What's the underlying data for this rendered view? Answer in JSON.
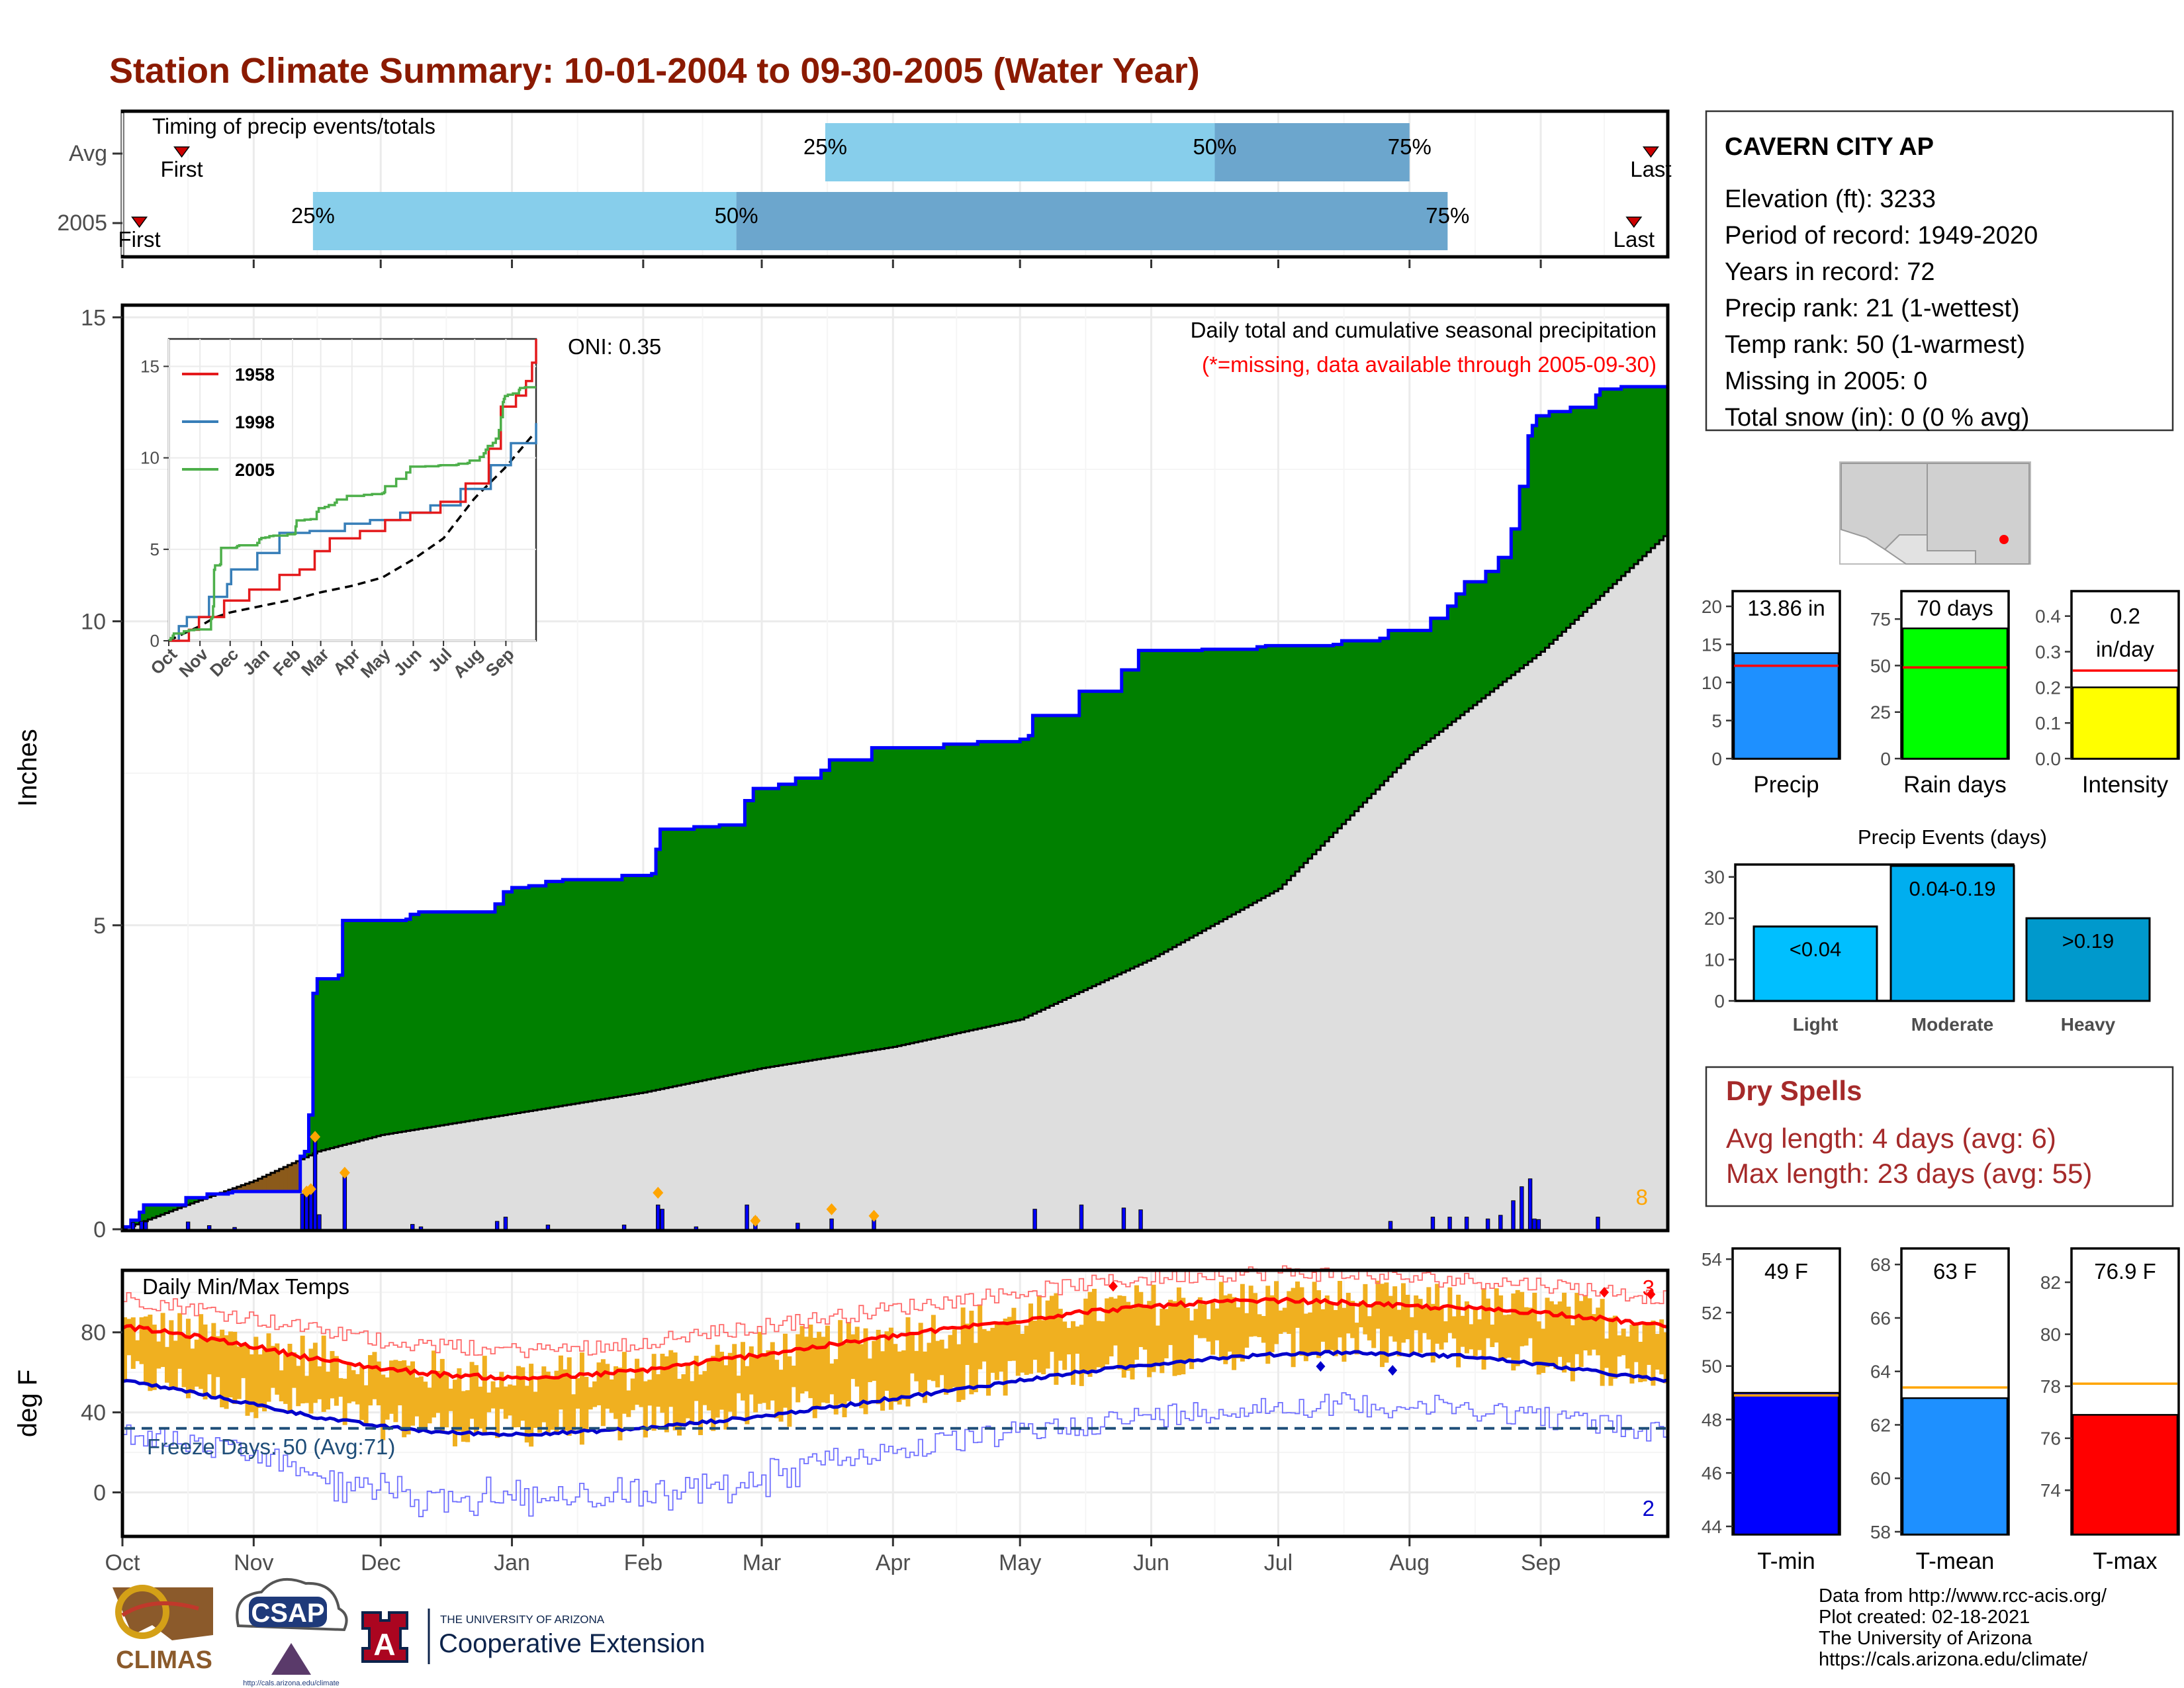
{
  "page_title": "Station Climate Summary: 10-01-2004 to 09-30-2005 (Water Year)",
  "colors": {
    "title": "#8B1A00",
    "timing_light": "#87CEEB",
    "timing_dark": "#6CA6CD",
    "cumulative_fill": "#008000",
    "cumulative_line": "#0000FF",
    "deficit_fill": "#8B5A1A",
    "climatology_fill": "#DEDEDE",
    "daily_bar": "#0000FF",
    "temp_range": "#F0B020",
    "tmax_line": "#FF0000",
    "tmin_line": "#0000CC",
    "freeze_line": "#1F4E79",
    "dry_spell_text": "#A52A2A"
  },
  "timing": {
    "title": "Timing of precip events/totals",
    "rows": [
      {
        "label": "Avg",
        "first_label": "First",
        "last_label": "Last",
        "first_date": "2004-10-15",
        "last_date": "2005-09-27",
        "p25_date": "2005-03-16",
        "p50_date": "2005-06-16",
        "p75_date": "2005-08-01",
        "p25_label": "25%",
        "p50_label": "50%",
        "p75_label": "75%"
      },
      {
        "label": "2005",
        "first_label": "First",
        "last_label": "Last",
        "first_date": "2004-10-05",
        "last_date": "2005-09-23",
        "p25_date": "2004-11-15",
        "p50_date": "2005-02-23",
        "p75_date": "2005-08-10",
        "p25_label": "25%",
        "p50_label": "50%",
        "p75_label": "75%"
      }
    ]
  },
  "precip_panel": {
    "ylabel": "Inches",
    "subtitle": "Daily total and cumulative seasonal precipitation",
    "missing_note": "(*=missing, data available through 2005-09-30)",
    "oni_label": "ONI: 0.35",
    "count_label": "8"
  },
  "temp_panel": {
    "title": "Daily Min/Max Temps",
    "ylabel": "deg F",
    "freeze_label": "Freeze Days: 50 (Avg:71)",
    "record_high_count": "3",
    "record_low_count": "2"
  },
  "month_labels": [
    "Oct",
    "Nov",
    "Dec",
    "Jan",
    "Feb",
    "Mar",
    "Apr",
    "May",
    "Jun",
    "Jul",
    "Aug",
    "Sep"
  ],
  "station": {
    "name": "CAVERN CITY AP",
    "lines": [
      "Elevation (ft): 3233",
      "Period of record: 1949-2020",
      "Years in record: 72",
      "Precip rank: 21 (1-wettest)",
      "Temp rank: 50 (1-warmest)",
      "Missing in 2005: 0",
      "Total snow (in): 0 (0 % avg)"
    ]
  },
  "summary_bars": [
    {
      "label": "Precip",
      "value_label": "13.86 in",
      "value": 13.86,
      "avg": 12.2,
      "ymax": 22,
      "ticks": [
        0,
        5,
        10,
        15,
        20
      ],
      "color": "#1E90FF"
    },
    {
      "label": "Rain days",
      "value_label": "70 days",
      "value": 70,
      "avg": 49,
      "ymax": 90,
      "ticks": [
        0,
        25,
        50,
        75
      ],
      "color": "#00FF00"
    },
    {
      "label": "Intensity",
      "value_label": "0.2 in/day",
      "value_line1": "0.2",
      "value_line2": "in/day",
      "value": 0.2,
      "avg": 0.247,
      "ymax": 0.47,
      "ticks": [
        0.0,
        0.1,
        0.2,
        0.3,
        0.4
      ],
      "tick_labels": [
        "0.0",
        "0.1",
        "0.2",
        "0.3",
        "0.4"
      ],
      "color": "#FFFF00"
    }
  ],
  "precip_events": {
    "title": "Precip Events (days)",
    "ticks": [
      0,
      10,
      20,
      30
    ],
    "categories": [
      {
        "label": "Light",
        "value_label": "<0.04",
        "value": 18,
        "color": "#00BFFF"
      },
      {
        "label": "Moderate",
        "value_label": "0.04-0.19",
        "value": 32,
        "color": "#00AEEF"
      },
      {
        "label": "Heavy",
        "value_label": ">0.19",
        "value": 20,
        "color": "#0099CC"
      }
    ]
  },
  "dry_spells": {
    "title": "Dry Spells",
    "avg_line": "Avg length: 4 days (avg: 6)",
    "max_line": "Max length: 23 days (avg: 55)"
  },
  "temp_summary": [
    {
      "label": "T-min",
      "value_label": "49 F",
      "value": 49.0,
      "avg": 48.9,
      "ymin": 43.7,
      "ymax": 54.4,
      "ticks": [
        44,
        46,
        48,
        50,
        52,
        54
      ],
      "color": "#0000FF"
    },
    {
      "label": "T-mean",
      "value_label": "63 F",
      "value": 63.0,
      "avg": 63.4,
      "ymin": 57.9,
      "ymax": 68.6,
      "ticks": [
        58,
        60,
        62,
        64,
        66,
        68
      ],
      "color": "#1E90FF"
    },
    {
      "label": "T-max",
      "value_label": "76.9 F",
      "value": 76.9,
      "avg": 78.1,
      "ymin": 72.3,
      "ymax": 83.3,
      "ticks": [
        74,
        76,
        78,
        80,
        82
      ],
      "color": "#FF0000"
    }
  ],
  "inset": {
    "series": [
      {
        "name": "1958",
        "color": "#E41A1C"
      },
      {
        "name": "1998",
        "color": "#377EB8"
      },
      {
        "name": "2005",
        "color": "#4DAF4A"
      }
    ],
    "ticks": [
      0,
      5,
      10,
      15
    ],
    "month_labels": [
      "Oct",
      "Nov",
      "Dec",
      "Jan",
      "Feb",
      "Mar",
      "Apr",
      "May",
      "Jun",
      "Jul",
      "Aug",
      "Sep"
    ]
  },
  "footer": {
    "line1": "Data from http://www.rcc-acis.org/",
    "line2": "Plot created: 02-18-2021",
    "line3": "The University of Arizona",
    "line4": "https://cals.arizona.edu/climate/"
  },
  "logos": {
    "climas": "CLIMAS",
    "csap": "CSAP",
    "csap_url": "http://cals.arizona.edu/climate",
    "ua_small": "THE UNIVERSITY OF ARIZONA",
    "ua_big": "Cooperative Extension",
    "ua_letter": "A"
  },
  "chart_data": [
    {
      "type": "area",
      "title": "Daily total and cumulative seasonal precipitation",
      "ylabel": "Inches",
      "ylim": [
        0,
        15.2
      ],
      "x_range": [
        "2004-10-01",
        "2005-09-30"
      ],
      "cumulative_2005_steps": [
        [
          "2004-10-01",
          0.04
        ],
        [
          "2004-10-03",
          0.15
        ],
        [
          "2004-10-05",
          0.28
        ],
        [
          "2004-10-06",
          0.4
        ],
        [
          "2004-10-15",
          0.4
        ],
        [
          "2004-10-16",
          0.52
        ],
        [
          "2004-10-21",
          0.58
        ],
        [
          "2004-10-26",
          0.6
        ],
        [
          "2004-10-27",
          0.62
        ],
        [
          "2004-11-07",
          0.62
        ],
        [
          "2004-11-12",
          1.2
        ],
        [
          "2004-11-13",
          1.28
        ],
        [
          "2004-11-14",
          1.88
        ],
        [
          "2004-11-15",
          3.88
        ],
        [
          "2004-11-16",
          4.12
        ],
        [
          "2004-11-21",
          4.18
        ],
        [
          "2004-11-22",
          5.08
        ],
        [
          "2004-12-07",
          5.1
        ],
        [
          "2004-12-08",
          5.18
        ],
        [
          "2004-12-10",
          5.22
        ],
        [
          "2004-12-28",
          5.35
        ],
        [
          "2004-12-30",
          5.55
        ],
        [
          "2005-01-01",
          5.62
        ],
        [
          "2005-01-05",
          5.65
        ],
        [
          "2005-01-09",
          5.72
        ],
        [
          "2005-01-13",
          5.75
        ],
        [
          "2005-01-27",
          5.82
        ],
        [
          "2005-02-03",
          5.85
        ],
        [
          "2005-02-04",
          6.25
        ],
        [
          "2005-02-05",
          6.58
        ],
        [
          "2005-02-13",
          6.62
        ],
        [
          "2005-02-19",
          6.65
        ],
        [
          "2005-02-25",
          7.05
        ],
        [
          "2005-02-27",
          7.25
        ],
        [
          "2005-03-05",
          7.32
        ],
        [
          "2005-03-09",
          7.42
        ],
        [
          "2005-03-15",
          7.55
        ],
        [
          "2005-03-17",
          7.72
        ],
        [
          "2005-03-27",
          7.92
        ],
        [
          "2005-04-13",
          7.98
        ],
        [
          "2005-04-21",
          8.02
        ],
        [
          "2005-05-01",
          8.06
        ],
        [
          "2005-05-03",
          8.12
        ],
        [
          "2005-05-04",
          8.45
        ],
        [
          "2005-05-15",
          8.85
        ],
        [
          "2005-05-25",
          9.2
        ],
        [
          "2005-05-29",
          9.52
        ],
        [
          "2005-06-13",
          9.54
        ],
        [
          "2005-06-26",
          9.58
        ],
        [
          "2005-06-28",
          9.6
        ],
        [
          "2005-07-14",
          9.62
        ],
        [
          "2005-07-16",
          9.68
        ],
        [
          "2005-07-25",
          9.72
        ],
        [
          "2005-07-27",
          9.85
        ],
        [
          "2005-08-06",
          10.05
        ],
        [
          "2005-08-10",
          10.25
        ],
        [
          "2005-08-12",
          10.45
        ],
        [
          "2005-08-14",
          10.65
        ],
        [
          "2005-08-19",
          10.82
        ],
        [
          "2005-08-22",
          11.05
        ],
        [
          "2005-08-25",
          11.52
        ],
        [
          "2005-08-27",
          12.22
        ],
        [
          "2005-08-29",
          13.05
        ],
        [
          "2005-08-30",
          13.22
        ],
        [
          "2005-08-31",
          13.38
        ],
        [
          "2005-09-03",
          13.45
        ],
        [
          "2005-09-08",
          13.52
        ],
        [
          "2005-09-14",
          13.72
        ],
        [
          "2005-09-15",
          13.82
        ],
        [
          "2005-09-20",
          13.86
        ],
        [
          "2005-09-30",
          13.86
        ]
      ],
      "climatology_cumulative": [
        [
          "2004-10-01",
          0.0
        ],
        [
          "2004-10-16",
          0.4
        ],
        [
          "2004-11-01",
          0.8
        ],
        [
          "2004-11-16",
          1.28
        ],
        [
          "2004-12-01",
          1.55
        ],
        [
          "2005-01-01",
          1.9
        ],
        [
          "2005-02-01",
          2.25
        ],
        [
          "2005-03-01",
          2.65
        ],
        [
          "2005-04-01",
          3.0
        ],
        [
          "2005-05-01",
          3.45
        ],
        [
          "2005-06-01",
          4.45
        ],
        [
          "2005-07-01",
          5.6
        ],
        [
          "2005-08-01",
          7.8
        ],
        [
          "2005-09-01",
          9.5
        ],
        [
          "2005-09-30",
          11.4
        ]
      ],
      "daily_precip_bars": [
        [
          "2004-10-03",
          0.11
        ],
        [
          "2004-10-05",
          0.13
        ],
        [
          "2004-10-06",
          0.12
        ],
        [
          "2004-10-16",
          0.12
        ],
        [
          "2004-10-21",
          0.06
        ],
        [
          "2004-10-27",
          0.03
        ],
        [
          "2004-11-12",
          0.58
        ],
        [
          "2004-11-13",
          0.65
        ],
        [
          "2004-11-14",
          0.6
        ],
        [
          "2004-11-15",
          1.5
        ],
        [
          "2004-11-16",
          0.24
        ],
        [
          "2004-11-22",
          0.9
        ],
        [
          "2004-12-08",
          0.08
        ],
        [
          "2004-12-10",
          0.04
        ],
        [
          "2004-12-28",
          0.13
        ],
        [
          "2004-12-30",
          0.2
        ],
        [
          "2005-01-09",
          0.07
        ],
        [
          "2005-01-27",
          0.07
        ],
        [
          "2005-02-04",
          0.4
        ],
        [
          "2005-02-05",
          0.33
        ],
        [
          "2005-02-13",
          0.04
        ],
        [
          "2005-02-25",
          0.4
        ],
        [
          "2005-02-27",
          0.2
        ],
        [
          "2005-03-09",
          0.1
        ],
        [
          "2005-03-17",
          0.17
        ],
        [
          "2005-03-27",
          0.2
        ],
        [
          "2005-05-04",
          0.33
        ],
        [
          "2005-05-15",
          0.4
        ],
        [
          "2005-05-25",
          0.35
        ],
        [
          "2005-05-29",
          0.32
        ],
        [
          "2005-07-27",
          0.13
        ],
        [
          "2005-08-06",
          0.2
        ],
        [
          "2005-08-10",
          0.2
        ],
        [
          "2005-08-14",
          0.2
        ],
        [
          "2005-08-19",
          0.17
        ],
        [
          "2005-08-22",
          0.23
        ],
        [
          "2005-08-25",
          0.47
        ],
        [
          "2005-08-27",
          0.7
        ],
        [
          "2005-08-29",
          0.83
        ],
        [
          "2005-08-30",
          0.17
        ],
        [
          "2005-08-31",
          0.16
        ],
        [
          "2005-09-14",
          0.2
        ]
      ],
      "record_markers": [
        [
          "2004-11-13",
          0.62
        ],
        [
          "2004-11-14",
          0.66
        ],
        [
          "2004-11-15",
          1.52
        ],
        [
          "2004-11-22",
          0.93
        ],
        [
          "2005-02-04",
          0.6
        ],
        [
          "2005-02-27",
          0.14
        ],
        [
          "2005-03-17",
          0.33
        ],
        [
          "2005-03-27",
          0.22
        ]
      ]
    },
    {
      "type": "line",
      "title": "Daily Min/Max Temps",
      "ylabel": "deg F",
      "ylim": [
        -22,
        111
      ],
      "yticks": [
        0,
        40,
        80
      ],
      "freeze_threshold": 32,
      "avg_tmax_points": [
        [
          "2004-10-01",
          83
        ],
        [
          "2004-10-15",
          79
        ],
        [
          "2004-11-01",
          73
        ],
        [
          "2004-11-15",
          67
        ],
        [
          "2004-12-01",
          62
        ],
        [
          "2004-12-15",
          59
        ],
        [
          "2005-01-01",
          57
        ],
        [
          "2005-01-15",
          58
        ],
        [
          "2005-02-01",
          61
        ],
        [
          "2005-02-15",
          65
        ],
        [
          "2005-03-01",
          69
        ],
        [
          "2005-03-15",
          73
        ],
        [
          "2005-04-01",
          78
        ],
        [
          "2005-04-15",
          82
        ],
        [
          "2005-05-01",
          86
        ],
        [
          "2005-05-15",
          90
        ],
        [
          "2005-06-01",
          93
        ],
        [
          "2005-06-15",
          95
        ],
        [
          "2005-07-01",
          96
        ],
        [
          "2005-07-15",
          95
        ],
        [
          "2005-08-01",
          93
        ],
        [
          "2005-08-15",
          92
        ],
        [
          "2005-09-01",
          90
        ],
        [
          "2005-09-15",
          87
        ],
        [
          "2005-09-30",
          83
        ]
      ],
      "avg_tmin_points": [
        [
          "2004-10-01",
          56
        ],
        [
          "2004-10-15",
          51
        ],
        [
          "2004-11-01",
          44
        ],
        [
          "2004-11-15",
          38
        ],
        [
          "2004-12-01",
          33
        ],
        [
          "2004-12-15",
          30
        ],
        [
          "2005-01-01",
          29
        ],
        [
          "2005-01-15",
          30
        ],
        [
          "2005-02-01",
          32
        ],
        [
          "2005-02-15",
          35
        ],
        [
          "2005-03-01",
          38
        ],
        [
          "2005-03-15",
          42
        ],
        [
          "2005-04-01",
          47
        ],
        [
          "2005-04-15",
          51
        ],
        [
          "2005-05-01",
          56
        ],
        [
          "2005-05-15",
          60
        ],
        [
          "2005-06-01",
          64
        ],
        [
          "2005-06-15",
          67
        ],
        [
          "2005-07-01",
          69
        ],
        [
          "2005-07-15",
          70
        ],
        [
          "2005-08-01",
          69
        ],
        [
          "2005-08-15",
          68
        ],
        [
          "2005-09-01",
          64
        ],
        [
          "2005-09-15",
          60
        ],
        [
          "2005-09-30",
          56
        ]
      ],
      "record_high_markers": [
        [
          "2005-05-23",
          103
        ],
        [
          "2005-09-16",
          100
        ],
        [
          "2005-09-27",
          99
        ]
      ],
      "record_low_markers": [
        [
          "2005-07-11",
          63
        ],
        [
          "2005-07-28",
          61
        ]
      ]
    }
  ]
}
